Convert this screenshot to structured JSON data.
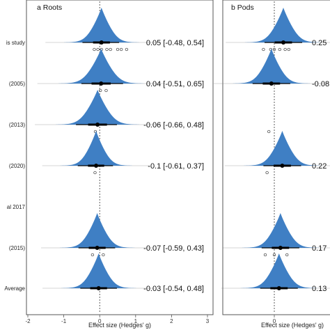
{
  "chart_data": [
    {
      "type": "density-forest",
      "title": "a Roots",
      "xlabel": "Effect size (Hedges' g)",
      "xlim": [
        -2,
        3
      ],
      "x_ticks": [
        -2,
        -1,
        0,
        1,
        2,
        3
      ],
      "reference_line_x": 0,
      "rows": [
        {
          "label": "is study",
          "mean": 0.05,
          "ci_lower": -0.48,
          "ci_upper": 0.54,
          "ci_text": "0.05 [-0.48, 0.54]",
          "points": [
            -0.15,
            0.05,
            0.2,
            0.3,
            0.5,
            0.6,
            -0.05,
            0.75
          ]
        },
        {
          "label": "(2005)",
          "mean": 0.04,
          "ci_lower": -0.51,
          "ci_upper": 0.65,
          "ci_text": "0.04 [-0.51, 0.65]",
          "points": [
            0.02,
            0.18
          ]
        },
        {
          "label": "(2013)",
          "mean": -0.06,
          "ci_lower": -0.66,
          "ci_upper": 0.48,
          "ci_text": "-0.06 [-0.66, 0.48]",
          "points": [
            -0.12
          ]
        },
        {
          "label": "(2020)",
          "mean": -0.1,
          "ci_lower": -0.61,
          "ci_upper": 0.37,
          "ci_text": "-0.1 [-0.61, 0.37]",
          "points": [
            -0.13
          ]
        },
        {
          "label": "al 2017",
          "mean": null,
          "ci_lower": null,
          "ci_upper": null,
          "ci_text": "",
          "points": []
        },
        {
          "label": "(2015)",
          "mean": -0.07,
          "ci_lower": -0.59,
          "ci_upper": 0.43,
          "ci_text": "-0.07 [-0.59, 0.43]",
          "points": [
            -0.2,
            0.1
          ]
        },
        {
          "label": "Average",
          "mean": -0.03,
          "ci_lower": -0.54,
          "ci_upper": 0.48,
          "ci_text": "-0.03 [-0.54, 0.48]",
          "points": []
        }
      ]
    },
    {
      "type": "density-forest",
      "title": "b Pods",
      "xlabel": "Effect size (Hedges' g)",
      "xlim": [
        -2,
        3
      ],
      "x_ticks": [
        0
      ],
      "reference_line_x": 0,
      "rows": [
        {
          "label": "",
          "mean": 0.25,
          "ci_text": "0.25",
          "points": [
            -0.3,
            -0.1,
            0.0,
            0.15,
            0.3,
            0.4
          ]
        },
        {
          "label": "",
          "mean": -0.08,
          "ci_text": "-0.08",
          "points": []
        },
        {
          "label": "",
          "mean": null,
          "ci_text": "",
          "points": [
            -0.15
          ]
        },
        {
          "label": "",
          "mean": 0.22,
          "ci_text": "0.22",
          "points": [
            -0.2
          ]
        },
        {
          "label": "",
          "mean": null,
          "ci_text": "",
          "points": []
        },
        {
          "label": "",
          "mean": 0.17,
          "ci_text": "0.17",
          "points": [
            -0.25,
            0.0,
            0.35
          ]
        },
        {
          "label": "",
          "mean": 0.13,
          "ci_text": "0.13",
          "points": []
        }
      ]
    }
  ],
  "colors": {
    "density": "#3f7fc4",
    "spine": "#777777",
    "ci": "#000000",
    "point": "#333333"
  }
}
